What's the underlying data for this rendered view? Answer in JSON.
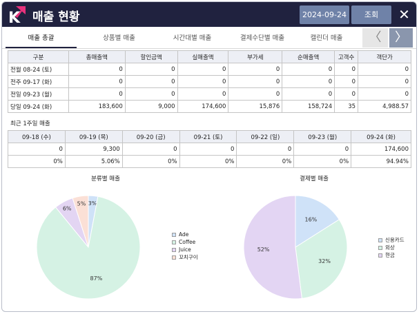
{
  "header": {
    "title": "매출 현황",
    "date": "2024-09-24",
    "query_label": "조회",
    "close_symbol": "✕",
    "logo_letter": "K"
  },
  "tabs": [
    {
      "label": "매출 총괄",
      "active": true
    },
    {
      "label": "상품별 매출",
      "active": false
    },
    {
      "label": "시간대별 매출",
      "active": false
    },
    {
      "label": "결제수단별 매출",
      "active": false
    },
    {
      "label": "캘린더 매출",
      "active": false
    }
  ],
  "nav": {
    "prev": "〈",
    "next": "〉"
  },
  "summary_table": {
    "headers": [
      "구분",
      "총매출액",
      "할인금액",
      "실매출액",
      "부가세",
      "순매출액",
      "고객수",
      "객단가"
    ],
    "rows": [
      [
        "전월 08-24 (토)",
        "0",
        "0",
        "0",
        "0",
        "0",
        "0",
        "0"
      ],
      [
        "전주 09-17 (화)",
        "0",
        "0",
        "0",
        "0",
        "0",
        "0",
        "0"
      ],
      [
        "전일 09-23 (월)",
        "0",
        "0",
        "0",
        "0",
        "0",
        "0",
        "0"
      ],
      [
        "당일 09-24 (화)",
        "183,600",
        "9,000",
        "174,600",
        "15,876",
        "158,724",
        "35",
        "4,988.57"
      ]
    ]
  },
  "weekly": {
    "label": "최근 1주일 매출",
    "headers": [
      "09-18 (수)",
      "09-19 (목)",
      "09-20 (금)",
      "09-21 (토)",
      "09-22 (일)",
      "09-23 (월)",
      "09-24 (화)"
    ],
    "amounts": [
      "0",
      "9,300",
      "0",
      "0",
      "0",
      "0",
      "174,600"
    ],
    "percents": [
      "0%",
      "5.06%",
      "0%",
      "0%",
      "0%",
      "0%",
      "94.94%"
    ]
  },
  "colors": {
    "header_bg": "#20223f",
    "button_bg": "#6f82a8",
    "logo_accent": "#e8327c"
  },
  "chart_data": [
    {
      "type": "pie",
      "title": "분류별 매출",
      "legend_position": "right",
      "slices": [
        {
          "label": "Ade",
          "value": 3,
          "color": "#cfe2f8"
        },
        {
          "label": "Coffee",
          "value": 87,
          "color": "#d5f2e4"
        },
        {
          "label": "Juice",
          "value": 6,
          "color": "#e3d5f3"
        },
        {
          "label": "꼬치구이",
          "value": 5,
          "color": "#fbe0d6"
        }
      ],
      "slice_labels": [
        "3%",
        "87%",
        "6%",
        "5%"
      ]
    },
    {
      "type": "pie",
      "title": "결제별 매출",
      "legend_position": "right",
      "slices": [
        {
          "label": "신용카드",
          "value": 16,
          "color": "#cfe2f8"
        },
        {
          "label": "외상",
          "value": 32,
          "color": "#d5f2e4"
        },
        {
          "label": "현금",
          "value": 52,
          "color": "#e3d5f3"
        }
      ],
      "slice_labels": [
        "16%",
        "32%",
        "52%"
      ]
    }
  ]
}
